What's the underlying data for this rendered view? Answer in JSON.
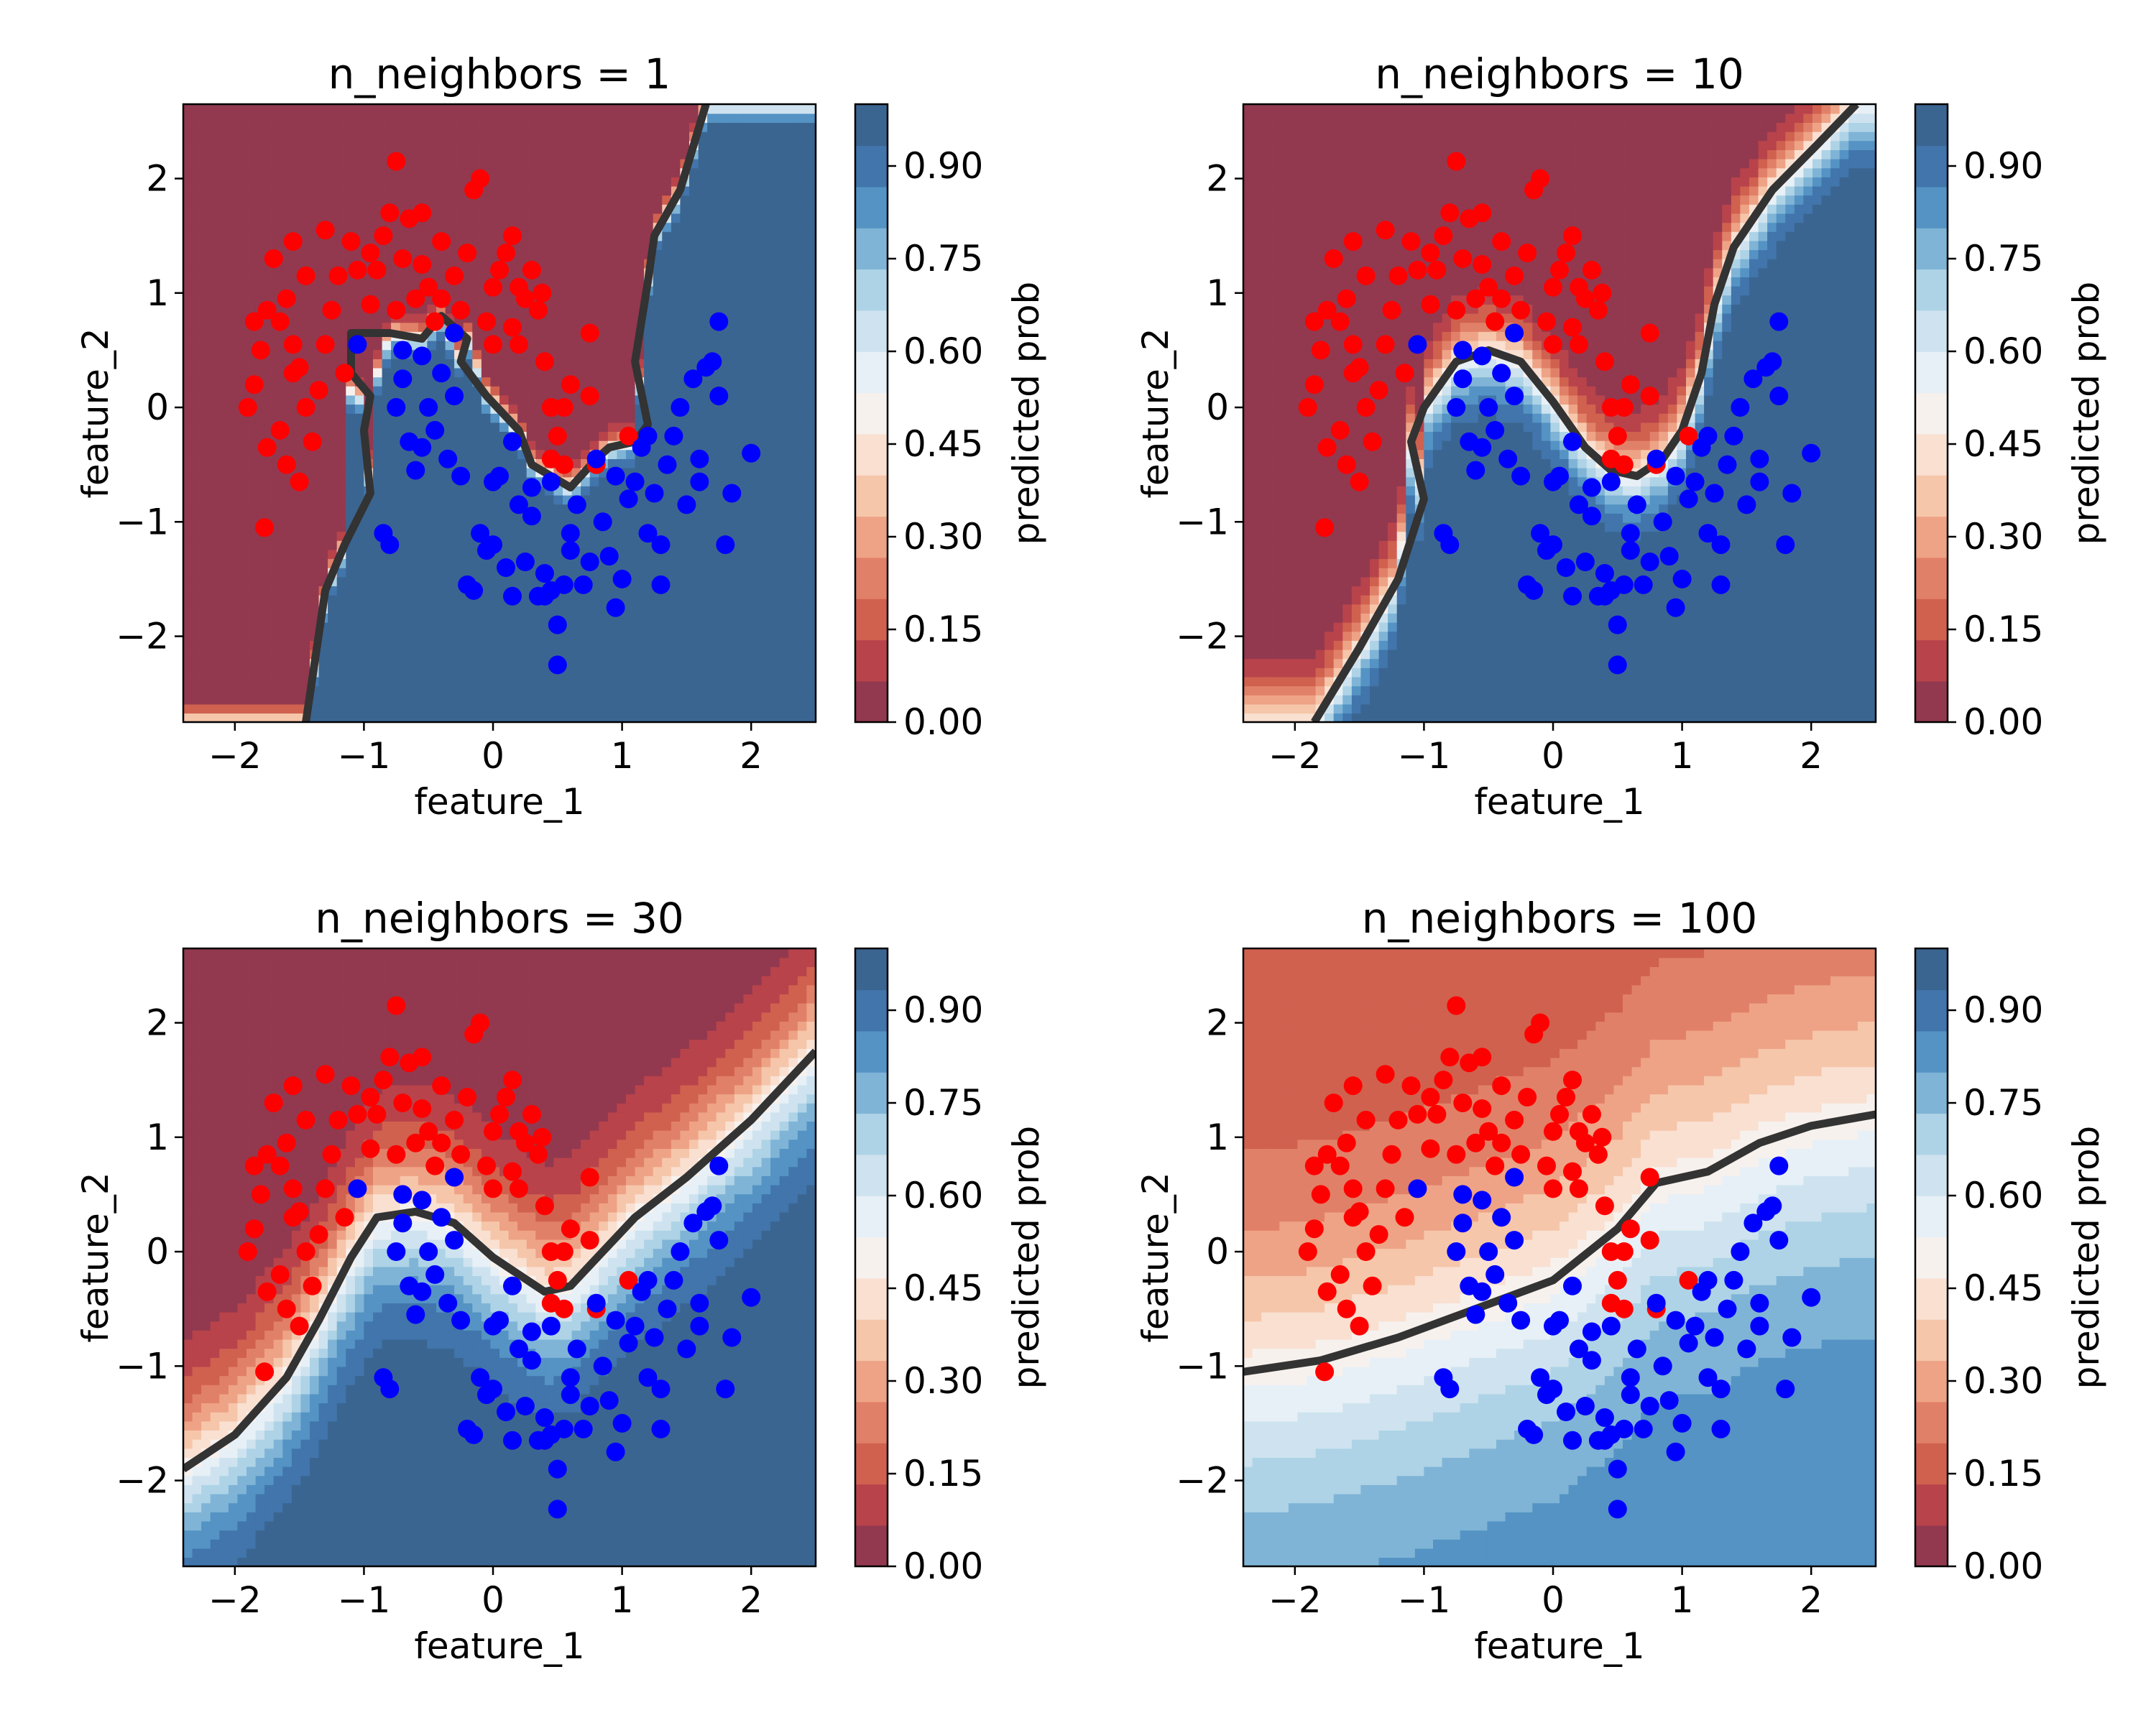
{
  "colors": {
    "class0_points": "#ff0000",
    "class1_points": "#0000ff",
    "boundary": "#333333",
    "colormap": [
      "#92394f",
      "#b9434b",
      "#d0614f",
      "#e18068",
      "#eea386",
      "#f6c6aa",
      "#f9e0d1",
      "#f7f1ee",
      "#e7f0f6",
      "#cee3ef",
      "#aed3e6",
      "#7fb4d6",
      "#5493c4",
      "#4175ab",
      "#3b6591"
    ]
  },
  "chart_data": [
    {
      "type": "contourf+scatter",
      "title": "n_neighbors = 1",
      "xlabel": "feature_1",
      "ylabel": "feature_2",
      "xlim": [
        -2.4,
        2.5
      ],
      "ylim": [
        -2.75,
        2.65
      ],
      "xticks": [
        "−2",
        "−1",
        "0",
        "1",
        "2"
      ],
      "xtick_values": [
        -2,
        -1,
        0,
        1,
        2
      ],
      "yticks": [
        "−2",
        "−1",
        "0",
        "1",
        "2"
      ],
      "ytick_values": [
        -2,
        -1,
        0,
        1,
        2
      ],
      "colorbar": {
        "label": "predicted prob",
        "ticks": [
          "0.00",
          "0.15",
          "0.30",
          "0.45",
          "0.60",
          "0.75",
          "0.90"
        ],
        "tick_values": [
          0,
          0.15,
          0.3,
          0.45,
          0.6,
          0.75,
          0.9
        ],
        "range": [
          0,
          1
        ]
      },
      "decision_boundary": [
        [
          -1.45,
          -2.75
        ],
        [
          -1.3,
          -1.6
        ],
        [
          -1.15,
          -1.2
        ],
        [
          -0.95,
          -0.75
        ],
        [
          -1.0,
          -0.2
        ],
        [
          -0.95,
          0.1
        ],
        [
          -1.1,
          0.3
        ],
        [
          -1.1,
          0.65
        ],
        [
          -0.8,
          0.65
        ],
        [
          -0.55,
          0.6
        ],
        [
          -0.4,
          0.8
        ],
        [
          -0.2,
          0.6
        ],
        [
          -0.25,
          0.4
        ],
        [
          -0.05,
          0.1
        ],
        [
          0.2,
          -0.2
        ],
        [
          0.3,
          -0.5
        ],
        [
          0.6,
          -0.7
        ],
        [
          0.8,
          -0.45
        ],
        [
          0.9,
          -0.35
        ],
        [
          1.1,
          -0.3
        ],
        [
          1.2,
          -0.15
        ],
        [
          1.1,
          0.4
        ],
        [
          1.2,
          1.1
        ],
        [
          1.25,
          1.5
        ],
        [
          1.45,
          1.9
        ],
        [
          1.65,
          2.65
        ]
      ],
      "blend": 0.0
    },
    {
      "type": "contourf+scatter",
      "title": "n_neighbors = 10",
      "xlabel": "feature_1",
      "ylabel": "feature_2",
      "xlim": [
        -2.4,
        2.5
      ],
      "ylim": [
        -2.75,
        2.65
      ],
      "xticks": [
        "−2",
        "−1",
        "0",
        "1",
        "2"
      ],
      "xtick_values": [
        -2,
        -1,
        0,
        1,
        2
      ],
      "yticks": [
        "−2",
        "−1",
        "0",
        "1",
        "2"
      ],
      "ytick_values": [
        -2,
        -1,
        0,
        1,
        2
      ],
      "colorbar": {
        "label": "predicted prob",
        "ticks": [
          "0.00",
          "0.15",
          "0.30",
          "0.45",
          "0.60",
          "0.75",
          "0.90"
        ],
        "tick_values": [
          0,
          0.15,
          0.3,
          0.45,
          0.6,
          0.75,
          0.9
        ],
        "range": [
          0,
          1
        ]
      },
      "decision_boundary": [
        [
          -1.85,
          -2.75
        ],
        [
          -1.5,
          -2.1
        ],
        [
          -1.2,
          -1.5
        ],
        [
          -1.0,
          -0.8
        ],
        [
          -1.1,
          -0.3
        ],
        [
          -1.0,
          0.0
        ],
        [
          -0.75,
          0.4
        ],
        [
          -0.5,
          0.5
        ],
        [
          -0.25,
          0.4
        ],
        [
          0.0,
          0.05
        ],
        [
          0.25,
          -0.35
        ],
        [
          0.45,
          -0.55
        ],
        [
          0.65,
          -0.6
        ],
        [
          0.85,
          -0.45
        ],
        [
          1.0,
          -0.2
        ],
        [
          1.15,
          0.3
        ],
        [
          1.25,
          0.9
        ],
        [
          1.4,
          1.4
        ],
        [
          1.7,
          1.9
        ],
        [
          2.05,
          2.3
        ],
        [
          2.35,
          2.65
        ]
      ],
      "blend": 0.12
    },
    {
      "type": "contourf+scatter",
      "title": "n_neighbors = 30",
      "xlabel": "feature_1",
      "ylabel": "feature_2",
      "xlim": [
        -2.4,
        2.5
      ],
      "ylim": [
        -2.75,
        2.65
      ],
      "xticks": [
        "−2",
        "−1",
        "0",
        "1",
        "2"
      ],
      "xtick_values": [
        -2,
        -1,
        0,
        1,
        2
      ],
      "yticks": [
        "−2",
        "−1",
        "0",
        "1",
        "2"
      ],
      "ytick_values": [
        -2,
        -1,
        0,
        1,
        2
      ],
      "colorbar": {
        "label": "predicted prob",
        "ticks": [
          "0.00",
          "0.15",
          "0.30",
          "0.45",
          "0.60",
          "0.75",
          "0.90"
        ],
        "tick_values": [
          0,
          0.15,
          0.3,
          0.45,
          0.6,
          0.75,
          0.9
        ],
        "range": [
          0,
          1
        ]
      },
      "decision_boundary": [
        [
          -2.4,
          -1.9
        ],
        [
          -2.0,
          -1.6
        ],
        [
          -1.6,
          -1.1
        ],
        [
          -1.35,
          -0.6
        ],
        [
          -1.1,
          -0.05
        ],
        [
          -0.9,
          0.3
        ],
        [
          -0.6,
          0.35
        ],
        [
          -0.3,
          0.25
        ],
        [
          0.0,
          -0.05
        ],
        [
          0.2,
          -0.2
        ],
        [
          0.4,
          -0.35
        ],
        [
          0.6,
          -0.3
        ],
        [
          0.85,
          0.0
        ],
        [
          1.1,
          0.3
        ],
        [
          1.5,
          0.65
        ],
        [
          2.0,
          1.15
        ],
        [
          2.5,
          1.75
        ]
      ],
      "blend": 0.3
    },
    {
      "type": "contourf+scatter",
      "title": "n_neighbors = 100",
      "xlabel": "feature_1",
      "ylabel": "feature_2",
      "xlim": [
        -2.4,
        2.5
      ],
      "ylim": [
        -2.75,
        2.65
      ],
      "xticks": [
        "−2",
        "−1",
        "0",
        "1",
        "2"
      ],
      "xtick_values": [
        -2,
        -1,
        0,
        1,
        2
      ],
      "yticks": [
        "−2",
        "−1",
        "0",
        "1",
        "2"
      ],
      "ytick_values": [
        -2,
        -1,
        0,
        1,
        2
      ],
      "colorbar": {
        "label": "predicted prob",
        "ticks": [
          "0.00",
          "0.15",
          "0.30",
          "0.45",
          "0.60",
          "0.75",
          "0.90"
        ],
        "tick_values": [
          0,
          0.15,
          0.3,
          0.45,
          0.6,
          0.75,
          0.9
        ],
        "range": [
          0,
          1
        ]
      },
      "decision_boundary": [
        [
          -2.4,
          -1.05
        ],
        [
          -1.8,
          -0.95
        ],
        [
          -1.2,
          -0.75
        ],
        [
          -0.6,
          -0.5
        ],
        [
          0.0,
          -0.25
        ],
        [
          0.5,
          0.2
        ],
        [
          0.8,
          0.6
        ],
        [
          1.2,
          0.7
        ],
        [
          1.6,
          0.95
        ],
        [
          2.0,
          1.1
        ],
        [
          2.5,
          1.2
        ]
      ],
      "blend": 0.62
    }
  ],
  "scatter_points": {
    "class0": [
      [
        -1.77,
        -1.05
      ],
      [
        -1.75,
        -0.35
      ],
      [
        -1.9,
        0.0
      ],
      [
        -1.85,
        0.2
      ],
      [
        -1.8,
        0.5
      ],
      [
        -1.85,
        0.75
      ],
      [
        -1.75,
        0.85
      ],
      [
        -1.7,
        1.3
      ],
      [
        -1.6,
        0.95
      ],
      [
        -1.55,
        0.55
      ],
      [
        -1.5,
        0.35
      ],
      [
        -1.45,
        0.0
      ],
      [
        -1.6,
        -0.5
      ],
      [
        -1.5,
        -0.65
      ],
      [
        -1.55,
        0.3
      ],
      [
        -1.4,
        -0.3
      ],
      [
        -1.35,
        0.15
      ],
      [
        -1.3,
        0.55
      ],
      [
        -1.25,
        0.85
      ],
      [
        -1.2,
        1.15
      ],
      [
        -1.15,
        0.3
      ],
      [
        -1.1,
        1.45
      ],
      [
        -1.05,
        1.2
      ],
      [
        -0.95,
        0.9
      ],
      [
        -0.9,
        1.2
      ],
      [
        -0.85,
        1.5
      ],
      [
        -0.8,
        1.7
      ],
      [
        -0.75,
        2.15
      ],
      [
        -0.7,
        1.3
      ],
      [
        -0.65,
        1.65
      ],
      [
        -0.6,
        0.95
      ],
      [
        -0.55,
        1.25
      ],
      [
        -0.5,
        1.05
      ],
      [
        -0.45,
        0.75
      ],
      [
        -0.4,
        0.95
      ],
      [
        -0.3,
        1.15
      ],
      [
        -0.2,
        1.35
      ],
      [
        -0.15,
        1.9
      ],
      [
        -0.1,
        2.0
      ],
      [
        -0.05,
        0.75
      ],
      [
        0.0,
        1.05
      ],
      [
        0.05,
        1.2
      ],
      [
        0.1,
        1.35
      ],
      [
        0.15,
        0.7
      ],
      [
        0.2,
        1.05
      ],
      [
        0.25,
        0.95
      ],
      [
        0.3,
        1.2
      ],
      [
        0.35,
        0.85
      ],
      [
        0.38,
        1.0
      ],
      [
        0.4,
        0.4
      ],
      [
        0.45,
        0.0
      ],
      [
        0.5,
        -0.25
      ],
      [
        0.55,
        0.0
      ],
      [
        0.6,
        0.2
      ],
      [
        0.45,
        -0.45
      ],
      [
        0.55,
        -0.5
      ],
      [
        0.75,
        0.65
      ],
      [
        0.75,
        0.1
      ],
      [
        0.8,
        -0.5
      ],
      [
        1.05,
        -0.25
      ],
      [
        -1.55,
        1.45
      ],
      [
        -1.3,
        1.55
      ],
      [
        -0.95,
        1.35
      ],
      [
        -0.4,
        1.45
      ],
      [
        0.15,
        1.5
      ],
      [
        0.2,
        0.55
      ],
      [
        -0.25,
        0.85
      ],
      [
        -0.55,
        1.7
      ],
      [
        -1.65,
        0.75
      ],
      [
        -1.65,
        -0.2
      ],
      [
        -1.45,
        1.15
      ],
      [
        -0.75,
        0.85
      ],
      [
        0.0,
        0.55
      ]
    ],
    "class1": [
      [
        -1.05,
        0.55
      ],
      [
        -0.85,
        -1.1
      ],
      [
        -0.8,
        -1.2
      ],
      [
        -0.75,
        0.0
      ],
      [
        -0.7,
        0.25
      ],
      [
        -0.65,
        -0.3
      ],
      [
        -0.6,
        -0.55
      ],
      [
        -0.55,
        0.45
      ],
      [
        -0.5,
        0.0
      ],
      [
        -0.45,
        -0.2
      ],
      [
        -0.4,
        0.3
      ],
      [
        -0.35,
        -0.45
      ],
      [
        -0.3,
        0.65
      ],
      [
        -0.25,
        -0.6
      ],
      [
        -0.2,
        -1.55
      ],
      [
        -0.15,
        -1.6
      ],
      [
        -0.1,
        -1.1
      ],
      [
        0.0,
        -1.2
      ],
      [
        0.05,
        -0.6
      ],
      [
        0.1,
        -1.4
      ],
      [
        0.15,
        -1.65
      ],
      [
        0.2,
        -0.85
      ],
      [
        0.25,
        -1.35
      ],
      [
        0.3,
        -0.7
      ],
      [
        0.35,
        -1.65
      ],
      [
        0.4,
        -1.45
      ],
      [
        0.45,
        -1.6
      ],
      [
        0.5,
        -1.9
      ],
      [
        0.5,
        -2.25
      ],
      [
        0.55,
        -1.55
      ],
      [
        0.6,
        -1.1
      ],
      [
        0.65,
        -0.85
      ],
      [
        0.7,
        -1.55
      ],
      [
        0.75,
        -1.35
      ],
      [
        0.8,
        -0.45
      ],
      [
        0.85,
        -1.0
      ],
      [
        0.9,
        -1.3
      ],
      [
        0.95,
        -0.6
      ],
      [
        1.0,
        -1.5
      ],
      [
        1.05,
        -0.8
      ],
      [
        1.1,
        -0.65
      ],
      [
        1.15,
        -0.35
      ],
      [
        1.2,
        -0.25
      ],
      [
        1.25,
        -0.75
      ],
      [
        1.3,
        -1.2
      ],
      [
        1.35,
        -0.5
      ],
      [
        1.4,
        -0.25
      ],
      [
        1.45,
        0.0
      ],
      [
        1.5,
        -0.85
      ],
      [
        1.55,
        0.25
      ],
      [
        1.6,
        -0.45
      ],
      [
        1.65,
        0.35
      ],
      [
        1.7,
        0.4
      ],
      [
        1.75,
        0.75
      ],
      [
        1.75,
        0.1
      ],
      [
        1.8,
        -1.2
      ],
      [
        1.85,
        -0.75
      ],
      [
        2.0,
        -0.4
      ],
      [
        1.3,
        -1.55
      ],
      [
        0.95,
        -1.75
      ],
      [
        0.4,
        -1.65
      ],
      [
        0.3,
        -0.95
      ],
      [
        -0.05,
        -1.25
      ],
      [
        0.6,
        -1.25
      ],
      [
        -0.7,
        0.5
      ],
      [
        -0.55,
        -0.35
      ],
      [
        0.15,
        -0.3
      ],
      [
        0.45,
        -0.65
      ],
      [
        1.2,
        -1.1
      ],
      [
        1.6,
        -0.65
      ],
      [
        -0.3,
        0.1
      ],
      [
        0.0,
        -0.65
      ]
    ]
  }
}
